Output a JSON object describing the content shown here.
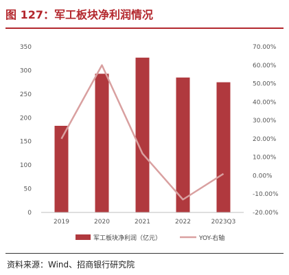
{
  "header": {
    "title": "图 127：军工板块净利润情况"
  },
  "footer": {
    "source": "资料来源：Wind、招商银行研究院"
  },
  "chart_data": {
    "type": "bar",
    "categories": [
      "2019",
      "2020",
      "2021",
      "2022",
      "2023Q3"
    ],
    "series": [
      {
        "name": "军工板块净利润（亿元）",
        "type": "bar",
        "axis": "left",
        "color": "#b0393e",
        "values": [
          183,
          293,
          327,
          285,
          275
        ]
      },
      {
        "name": "YOY-右轴",
        "type": "line",
        "axis": "right",
        "color": "#d9a0a0",
        "values": [
          20,
          60,
          12,
          -13,
          1
        ]
      }
    ],
    "left_axis": {
      "ylim": [
        0,
        350
      ],
      "ticks": [
        "0",
        "50",
        "100",
        "150",
        "200",
        "250",
        "300",
        "350"
      ]
    },
    "right_axis": {
      "ylim": [
        -20,
        70
      ],
      "ticks": [
        "-20.00%",
        "-10.00%",
        "0.00%",
        "10.00%",
        "20.00%",
        "30.00%",
        "40.00%",
        "50.00%",
        "60.00%",
        "70.00%"
      ]
    },
    "legend": {
      "placement": "bottom"
    },
    "grid": false
  }
}
